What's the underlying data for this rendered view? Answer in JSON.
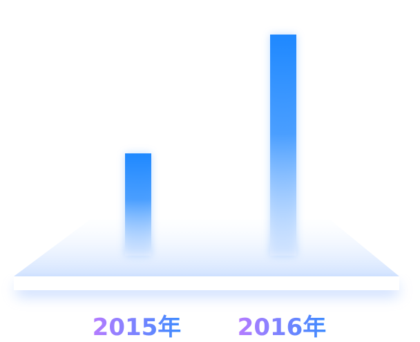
{
  "chart_data": {
    "type": "bar",
    "title": "",
    "xlabel": "",
    "ylabel": "",
    "categories": [
      "2015年",
      "2016年"
    ],
    "values": [
      148,
      320
    ],
    "ylim": [
      0,
      330
    ],
    "grid": false,
    "legend": "none"
  },
  "colors": {
    "bar_top": "#1e88ff",
    "bar_bottom": "#ffffff",
    "platform": "#dbe9ff",
    "platform_top": "#ffffff",
    "label_start": "#b57bff",
    "label_end": "#3d8bff"
  }
}
